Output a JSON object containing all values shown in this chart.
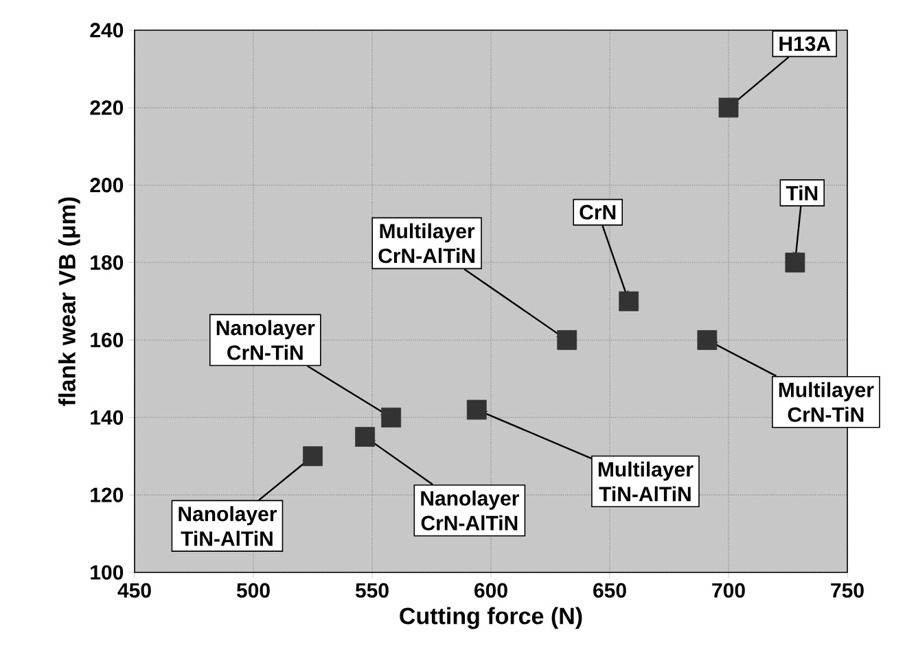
{
  "chart_data": {
    "type": "scatter",
    "xlabel": "Cutting force (N)",
    "ylabel": "flank wear VB (μm)",
    "x": [
      700,
      728,
      658,
      632,
      691,
      594,
      558,
      547,
      525
    ],
    "values": [
      220,
      180,
      170,
      160,
      160,
      142,
      140,
      135,
      130
    ],
    "color": "#333333",
    "marker": "square",
    "grid": true,
    "xlim": [
      450,
      750
    ],
    "ylim": [
      100,
      240
    ],
    "xticks": [
      450,
      500,
      550,
      600,
      650,
      700,
      750
    ],
    "yticks": [
      100,
      120,
      140,
      160,
      180,
      200,
      220,
      240
    ],
    "annotations": [
      {
        "text": "H13A",
        "x": 700,
        "y": 220
      },
      {
        "text": "TiN",
        "x": 728,
        "y": 180
      },
      {
        "text": "CrN",
        "x": 658,
        "y": 170
      },
      {
        "text": "Multilayer CrN-AlTiN",
        "x": 632,
        "y": 160
      },
      {
        "text": "Multilayer CrN-TiN",
        "x": 691,
        "y": 160
      },
      {
        "text": "Multilayer TiN-AlTiN",
        "x": 594,
        "y": 142
      },
      {
        "text": "Nanolayer CrN-TiN",
        "x": 558,
        "y": 140
      },
      {
        "text": "Nanolayer CrN-AlTiN",
        "x": 547,
        "y": 135
      },
      {
        "text": "Nanolayer TiN-AlTiN",
        "x": 525,
        "y": 130
      }
    ]
  }
}
